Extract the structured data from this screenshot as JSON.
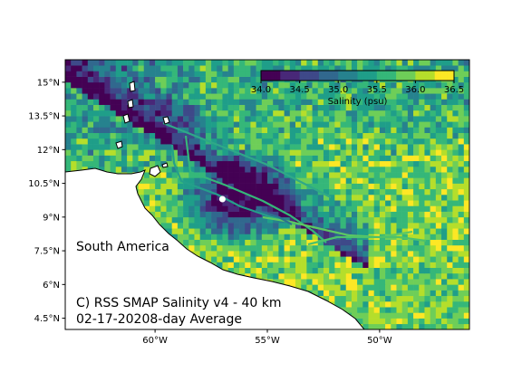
{
  "map": {
    "title_line1": "C) RSS SMAP Salinity v4 - 40 km",
    "title_line2": "02-17-20208-day Average",
    "continent_label": "South America",
    "extent": {
      "lon_min": -64,
      "lon_max": -46,
      "lat_min": 4,
      "lat_max": 16
    },
    "lat_ticks": [
      {
        "value": 15,
        "label": "15°N"
      },
      {
        "value": 13.5,
        "label": "13.5°N"
      },
      {
        "value": 12,
        "label": "12°N"
      },
      {
        "value": 10.5,
        "label": "10.5°N"
      },
      {
        "value": 9,
        "label": "9°N"
      },
      {
        "value": 7.5,
        "label": "7.5°N"
      },
      {
        "value": 6,
        "label": "6°N"
      },
      {
        "value": 4.5,
        "label": "4.5°N"
      }
    ],
    "lon_ticks": [
      {
        "value": -60,
        "label": "60°W"
      },
      {
        "value": -55,
        "label": "55°W"
      },
      {
        "value": -50,
        "label": "50°W"
      }
    ],
    "marker": {
      "lon": -57.0,
      "lat": 9.8,
      "color": "#ffffff"
    }
  },
  "colorbar": {
    "label": "Salinity (psu)",
    "colormap": "viridis",
    "vmin": 34.0,
    "vmax": 36.5,
    "ticks": [
      "34.0",
      "34.5",
      "35.0",
      "35.5",
      "36.0",
      "36.5"
    ]
  },
  "colors": {
    "viridis": [
      "#440154",
      "#482878",
      "#3e4989",
      "#31688e",
      "#26828e",
      "#1f9e89",
      "#35b779",
      "#6ece58",
      "#b5de2b",
      "#fde725"
    ],
    "land": "#ffffff",
    "coast": "#000000"
  }
}
